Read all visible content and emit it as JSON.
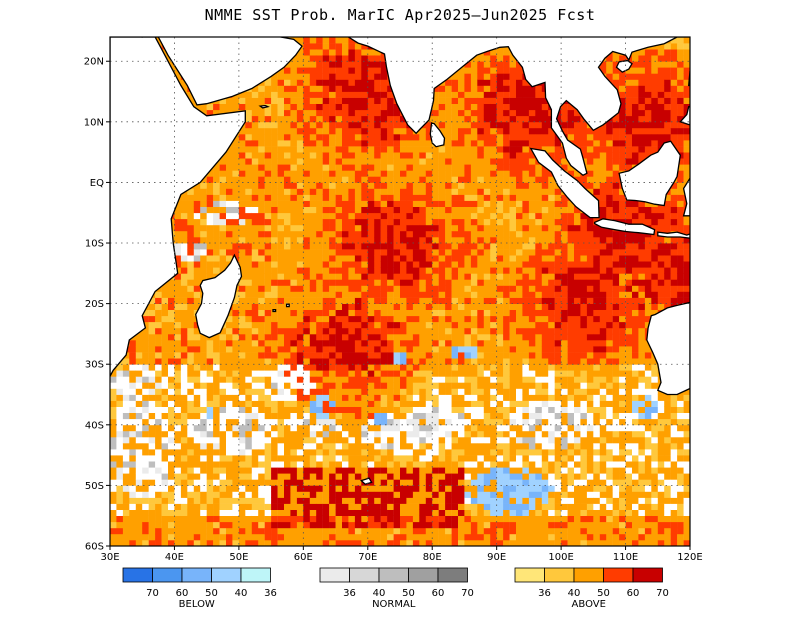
{
  "title": "NMME SST Prob. MarIC  Apr2025–Jun2025 Fcst",
  "map": {
    "lon_range": [
      30,
      120
    ],
    "lat_range": [
      -60,
      24
    ],
    "x_ticks": [
      {
        "value": 30,
        "label": "30E"
      },
      {
        "value": 40,
        "label": "40E"
      },
      {
        "value": 50,
        "label": "50E"
      },
      {
        "value": 60,
        "label": "60E"
      },
      {
        "value": 70,
        "label": "70E"
      },
      {
        "value": 80,
        "label": "80E"
      },
      {
        "value": 90,
        "label": "90E"
      },
      {
        "value": 100,
        "label": "100E"
      },
      {
        "value": 110,
        "label": "110E"
      },
      {
        "value": 120,
        "label": "120E"
      }
    ],
    "y_ticks": [
      {
        "value": 20,
        "label": "20N"
      },
      {
        "value": 10,
        "label": "10N"
      },
      {
        "value": 0,
        "label": "EQ"
      },
      {
        "value": -10,
        "label": "10S"
      },
      {
        "value": -20,
        "label": "20S"
      },
      {
        "value": -30,
        "label": "30S"
      },
      {
        "value": -40,
        "label": "40S"
      },
      {
        "value": -50,
        "label": "50S"
      },
      {
        "value": -60,
        "label": "60S"
      }
    ],
    "grid": true
  },
  "legend": [
    {
      "name": "BELOW",
      "colors": [
        "#2873e6",
        "#4b96f0",
        "#78b4fa",
        "#a0d2ff",
        "#bef5f8"
      ],
      "labels": [
        "70",
        "60",
        "50",
        "40",
        "36"
      ]
    },
    {
      "name": "NORMAL",
      "colors": [
        "#ebebeb",
        "#d7d7d7",
        "#bebebe",
        "#a0a0a0",
        "#7d7d7d"
      ],
      "labels": [
        "36",
        "40",
        "50",
        "60",
        "70"
      ]
    },
    {
      "name": "ABOVE",
      "colors": [
        "#ffe678",
        "#ffc83c",
        "#ffa000",
        "#ff3c00",
        "#c80000"
      ],
      "labels": [
        "36",
        "40",
        "50",
        "60",
        "70"
      ]
    }
  ]
}
